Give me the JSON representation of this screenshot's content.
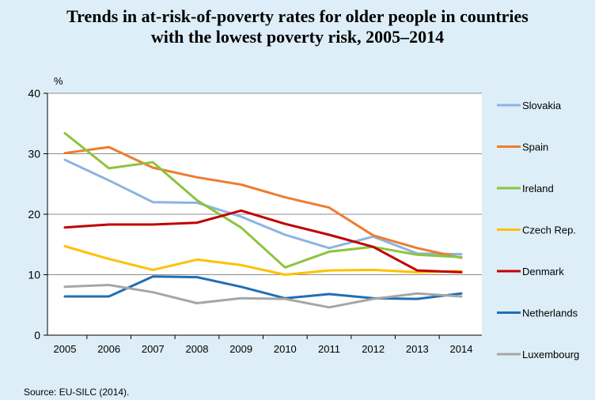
{
  "title_line1": "Trends in at-risk-of-poverty rates for older people in countries",
  "title_line2": "with the lowest poverty risk, 2005–2014",
  "source": "Source: EU-SILC (2014).",
  "chart_data": {
    "type": "line",
    "ylabel": "%",
    "ylim": [
      0,
      40
    ],
    "yticks": [
      0,
      10,
      20,
      30,
      40
    ],
    "grid": true,
    "legend_position": "right",
    "x": [
      "2005",
      "2006",
      "2007",
      "2008",
      "2009",
      "2010",
      "2011",
      "2012",
      "2013",
      "2014"
    ],
    "series": [
      {
        "name": "Slovakia",
        "color": "#8db3e2",
        "values": [
          29.0,
          25.6,
          22.0,
          21.9,
          19.6,
          16.6,
          14.4,
          16.3,
          13.5,
          13.4
        ]
      },
      {
        "name": "Spain",
        "color": "#ed7d31",
        "values": [
          30.1,
          31.1,
          27.7,
          26.1,
          24.9,
          22.8,
          21.1,
          16.5,
          14.4,
          12.8
        ]
      },
      {
        "name": "Ireland",
        "color": "#8cc43c",
        "values": [
          33.4,
          27.6,
          28.6,
          22.3,
          17.8,
          11.2,
          13.8,
          14.6,
          13.3,
          12.9
        ]
      },
      {
        "name": "Czech Rep.",
        "color": "#ffc000",
        "values": [
          14.7,
          12.6,
          10.8,
          12.5,
          11.6,
          10.0,
          10.7,
          10.8,
          10.4,
          10.6
        ]
      },
      {
        "name": "Denmark",
        "color": "#c00000",
        "values": [
          17.8,
          18.3,
          18.3,
          18.6,
          20.6,
          18.4,
          16.6,
          14.6,
          10.7,
          10.4
        ]
      },
      {
        "name": "Netherlands",
        "color": "#1f6fb4",
        "values": [
          6.4,
          6.4,
          9.7,
          9.6,
          8.0,
          6.1,
          6.8,
          6.1,
          6.0,
          6.9
        ]
      },
      {
        "name": "Luxembourg",
        "color": "#a6a6a6",
        "values": [
          8.0,
          8.3,
          7.1,
          5.3,
          6.1,
          6.0,
          4.6,
          6.0,
          6.9,
          6.4
        ]
      }
    ]
  }
}
